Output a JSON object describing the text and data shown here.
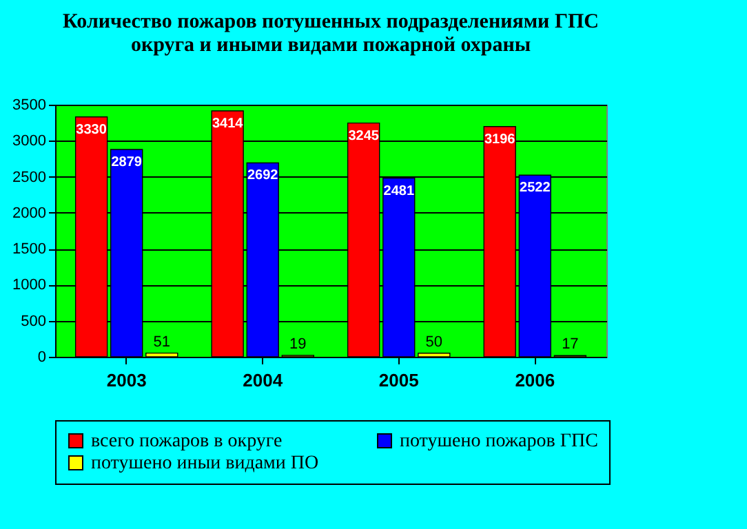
{
  "chart_data": {
    "type": "bar",
    "title": "Количество пожаров потушенных подразделениями ГПС округа и иными видами пожарной охраны",
    "categories": [
      "2003",
      "2004",
      "2005",
      "2006"
    ],
    "series": [
      {
        "name": "всего пожаров в округе",
        "color": "#ff0000",
        "values": [
          3330,
          3414,
          3245,
          3196
        ]
      },
      {
        "name": "потушено пожаров ГПС",
        "color": "#0000ff",
        "values": [
          2879,
          2692,
          2481,
          2522
        ]
      },
      {
        "name": "потушено иныи видами ПО",
        "color": "#ffff00",
        "values": [
          51,
          19,
          50,
          17
        ]
      }
    ],
    "ylim": [
      0,
      3500
    ],
    "yticks": [
      0,
      500,
      1000,
      1500,
      2000,
      2500,
      3000,
      3500
    ],
    "grid": "y",
    "legend": "bottom",
    "data_labels": true
  }
}
